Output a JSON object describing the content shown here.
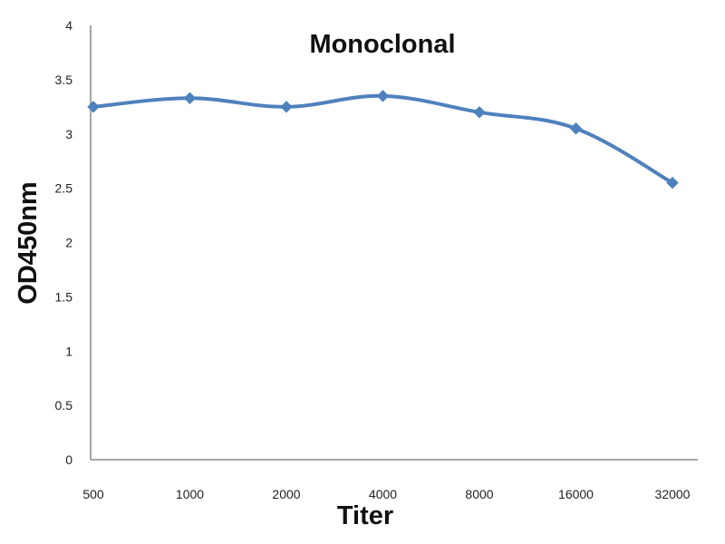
{
  "chart_data": {
    "type": "line",
    "title": "Monoclonal",
    "xlabel": "Titer",
    "ylabel": "OD450nm",
    "categories": [
      "500",
      "1000",
      "2000",
      "4000",
      "8000",
      "16000",
      "32000"
    ],
    "series": [
      {
        "values": [
          3.25,
          3.33,
          3.25,
          3.35,
          3.2,
          3.05,
          2.55
        ],
        "color": "#4f81bd"
      }
    ],
    "ylim": [
      0,
      4
    ],
    "yticks": [
      "0",
      "0.5",
      "1",
      "1.5",
      "2",
      "2.5",
      "3",
      "3.5",
      "4"
    ],
    "grid": false,
    "legend": "none",
    "marker": "diamond"
  }
}
